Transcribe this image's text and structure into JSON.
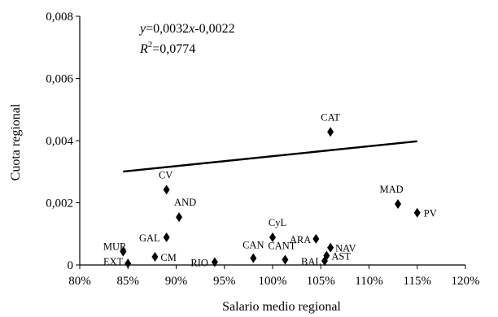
{
  "chart_data": {
    "type": "scatter",
    "xlabel": "Salario medio regional",
    "ylabel": "Cuota regional",
    "xlim": [
      80,
      120
    ],
    "ylim": [
      0,
      0.008
    ],
    "xticks": [
      "80%",
      "85%",
      "90%",
      "95%",
      "100%",
      "105%",
      "110%",
      "115%",
      "120%"
    ],
    "xtick_values": [
      80,
      85,
      90,
      95,
      100,
      105,
      110,
      115,
      120
    ],
    "yticks": [
      "0",
      "0,002",
      "0,004",
      "0,006",
      "0,008"
    ],
    "ytick_values": [
      0,
      0.002,
      0.004,
      0.006,
      0.008
    ],
    "marker": "diamond",
    "grid": false,
    "points": [
      {
        "label": "CAT",
        "x": 106.0,
        "y": 0.00428
      },
      {
        "label": "CV",
        "x": 89.0,
        "y": 0.00242
      },
      {
        "label": "MAD",
        "x": 113.0,
        "y": 0.00196
      },
      {
        "label": "PV",
        "x": 115.0,
        "y": 0.00168
      },
      {
        "label": "AND",
        "x": 90.3,
        "y": 0.00154
      },
      {
        "label": "GAL",
        "x": 89.0,
        "y": 0.00089
      },
      {
        "label": "CyL",
        "x": 100.0,
        "y": 0.00089
      },
      {
        "label": "ARA",
        "x": 104.5,
        "y": 0.00084
      },
      {
        "label": "NAV",
        "x": 106.0,
        "y": 0.00056
      },
      {
        "label": "MUR",
        "x": 84.5,
        "y": 0.00043
      },
      {
        "label": "AST",
        "x": 105.6,
        "y": 0.0003
      },
      {
        "label": "CM",
        "x": 87.8,
        "y": 0.00026
      },
      {
        "label": "CAN",
        "x": 98.0,
        "y": 0.00022
      },
      {
        "label": "CANT",
        "x": 101.3,
        "y": 0.00017
      },
      {
        "label": "BAL",
        "x": 105.4,
        "y": 0.00013
      },
      {
        "label": "RIO",
        "x": 94.0,
        "y": 9e-05
      },
      {
        "label": "EXT",
        "x": 85.0,
        "y": 5e-05
      }
    ],
    "trendline": {
      "x_range": [
        84.5,
        115.0
      ],
      "slope": 0.0032,
      "intercept": -0.0022
    },
    "annotations": {
      "equation_y": "y",
      "equation_rest": "=0,0032",
      "equation_x": "x",
      "equation_tail": "-0,0022",
      "r2_r": "R",
      "r2_sup": "2",
      "r2_value": "=0,0774"
    }
  }
}
